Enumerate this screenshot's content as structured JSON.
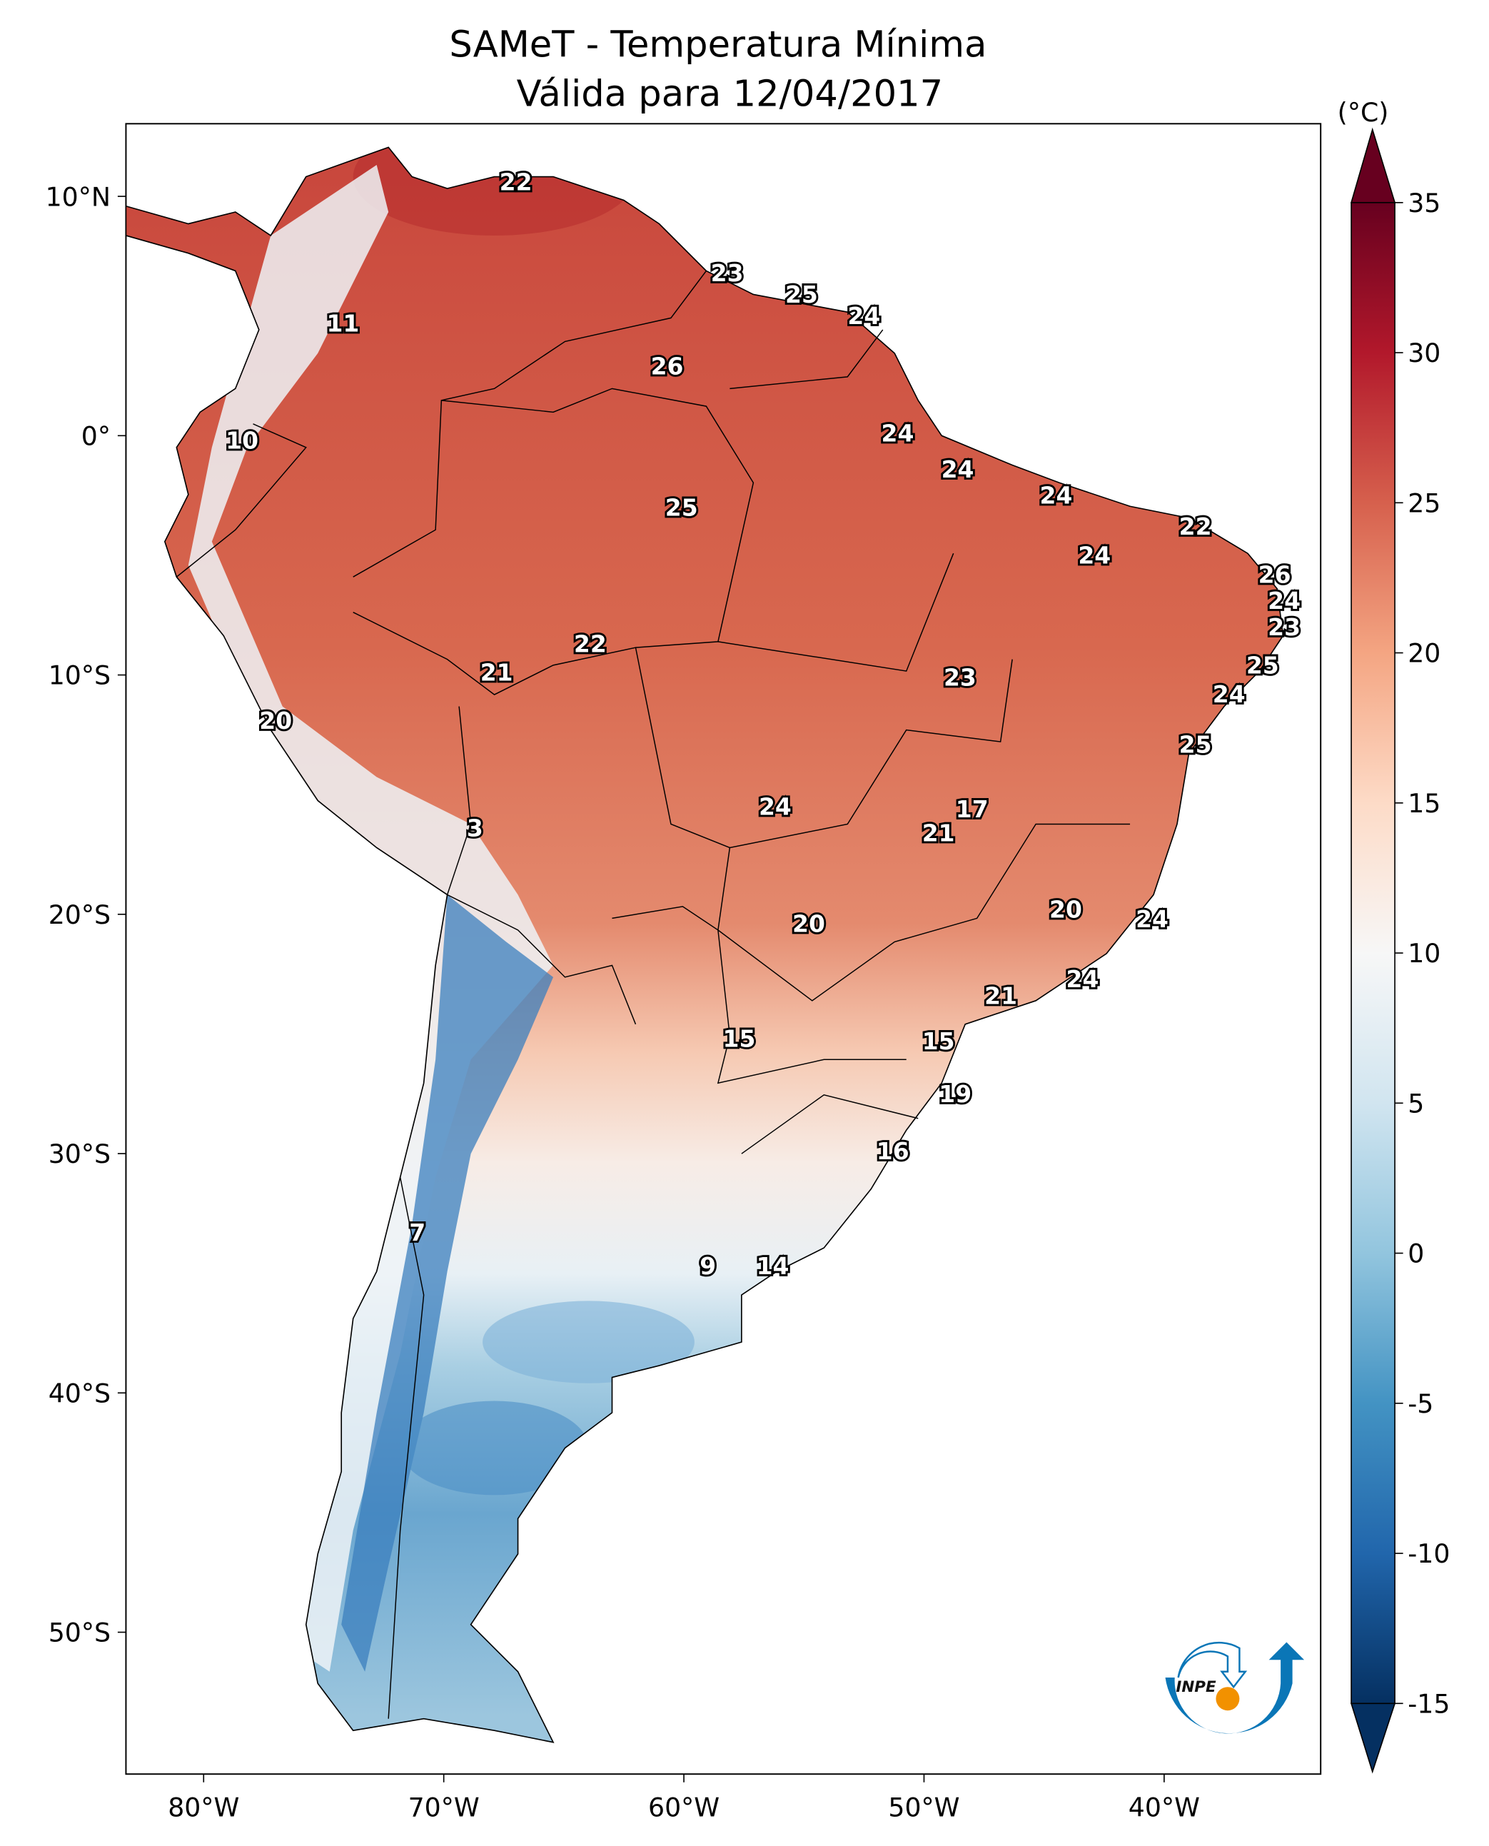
{
  "title": {
    "line1": "SAMeT - Temperatura Mínima",
    "line2": "Válida para 12/04/2017"
  },
  "colorbar": {
    "unit_label": "(°C)",
    "min": -15,
    "max": 35,
    "ticks": [
      {
        "v": 35,
        "t": "35"
      },
      {
        "v": 30,
        "t": "30"
      },
      {
        "v": 25,
        "t": "25"
      },
      {
        "v": 20,
        "t": "20"
      },
      {
        "v": 15,
        "t": "15"
      },
      {
        "v": 10,
        "t": "10"
      },
      {
        "v": 5,
        "t": "5"
      },
      {
        "v": 0,
        "t": "0"
      },
      {
        "v": -5,
        "t": "-5"
      },
      {
        "v": -10,
        "t": "-10"
      },
      {
        "v": -15,
        "t": "-15"
      }
    ],
    "colors": [
      "#053061",
      "#2166ac",
      "#4393c3",
      "#92c5de",
      "#d1e5f0",
      "#f7f7f7",
      "#fddbc7",
      "#f4a582",
      "#d6604d",
      "#b2182b",
      "#67001f"
    ]
  },
  "axes": {
    "lon_ticks": [
      {
        "v": -80,
        "t": "80°W"
      },
      {
        "v": -70,
        "t": "70°W"
      },
      {
        "v": -60,
        "t": "60°W"
      },
      {
        "v": -50,
        "t": "50°W"
      },
      {
        "v": -40,
        "t": "40°W"
      }
    ],
    "lat_ticks": [
      {
        "v": 10,
        "t": "10°N"
      },
      {
        "v": 0,
        "t": "0°"
      },
      {
        "v": -10,
        "t": "10°S"
      },
      {
        "v": -20,
        "t": "20°S"
      },
      {
        "v": -30,
        "t": "30°S"
      },
      {
        "v": -40,
        "t": "40°S"
      },
      {
        "v": -50,
        "t": "50°S"
      }
    ],
    "lon_range": [
      -83,
      -33
    ],
    "lat_range": [
      -56,
      13
    ]
  },
  "stations": [
    {
      "t": "22",
      "lon": -67.0,
      "lat": 10.6
    },
    {
      "t": "11",
      "lon": -74.2,
      "lat": 4.7
    },
    {
      "t": "23",
      "lon": -58.2,
      "lat": 6.8
    },
    {
      "t": "25",
      "lon": -55.1,
      "lat": 5.9
    },
    {
      "t": "24",
      "lon": -52.5,
      "lat": 5.0
    },
    {
      "t": "26",
      "lon": -60.7,
      "lat": 2.9
    },
    {
      "t": "10",
      "lon": -78.4,
      "lat": -0.2
    },
    {
      "t": "24",
      "lon": -51.1,
      "lat": 0.1
    },
    {
      "t": "24",
      "lon": -48.6,
      "lat": -1.4
    },
    {
      "t": "25",
      "lon": -60.1,
      "lat": -3.0
    },
    {
      "t": "24",
      "lon": -44.5,
      "lat": -2.5
    },
    {
      "t": "22",
      "lon": -38.7,
      "lat": -3.8
    },
    {
      "t": "24",
      "lon": -42.9,
      "lat": -5.0
    },
    {
      "t": "26",
      "lon": -35.4,
      "lat": -5.8
    },
    {
      "t": "24",
      "lon": -35.0,
      "lat": -6.9
    },
    {
      "t": "23",
      "lon": -35.0,
      "lat": -8.0
    },
    {
      "t": "22",
      "lon": -63.9,
      "lat": -8.7
    },
    {
      "t": "21",
      "lon": -67.8,
      "lat": -9.9
    },
    {
      "t": "25",
      "lon": -35.9,
      "lat": -9.6
    },
    {
      "t": "23",
      "lon": -48.5,
      "lat": -10.1
    },
    {
      "t": "24",
      "lon": -37.3,
      "lat": -10.8
    },
    {
      "t": "20",
      "lon": -77.0,
      "lat": -11.9
    },
    {
      "t": "25",
      "lon": -38.7,
      "lat": -12.9
    },
    {
      "t": "17",
      "lon": -48.0,
      "lat": -15.6
    },
    {
      "t": "24",
      "lon": -56.2,
      "lat": -15.5
    },
    {
      "t": "21",
      "lon": -49.4,
      "lat": -16.6
    },
    {
      "t": "3",
      "lon": -68.7,
      "lat": -16.4
    },
    {
      "t": "20",
      "lon": -44.1,
      "lat": -19.8
    },
    {
      "t": "20",
      "lon": -54.8,
      "lat": -20.4
    },
    {
      "t": "24",
      "lon": -40.5,
      "lat": -20.2
    },
    {
      "t": "24",
      "lon": -43.4,
      "lat": -22.7
    },
    {
      "t": "21",
      "lon": -46.8,
      "lat": -23.4
    },
    {
      "t": "15",
      "lon": -57.7,
      "lat": -25.2
    },
    {
      "t": "15",
      "lon": -49.4,
      "lat": -25.3
    },
    {
      "t": "19",
      "lon": -48.7,
      "lat": -27.5
    },
    {
      "t": "16",
      "lon": -51.3,
      "lat": -29.9
    },
    {
      "t": "7",
      "lon": -71.1,
      "lat": -33.3
    },
    {
      "t": "9",
      "lon": -59.0,
      "lat": -34.7
    },
    {
      "t": "14",
      "lon": -56.3,
      "lat": -34.7
    }
  ],
  "logo": {
    "text": "INPE",
    "blue": "#0a76b7",
    "orange": "#f29100"
  }
}
